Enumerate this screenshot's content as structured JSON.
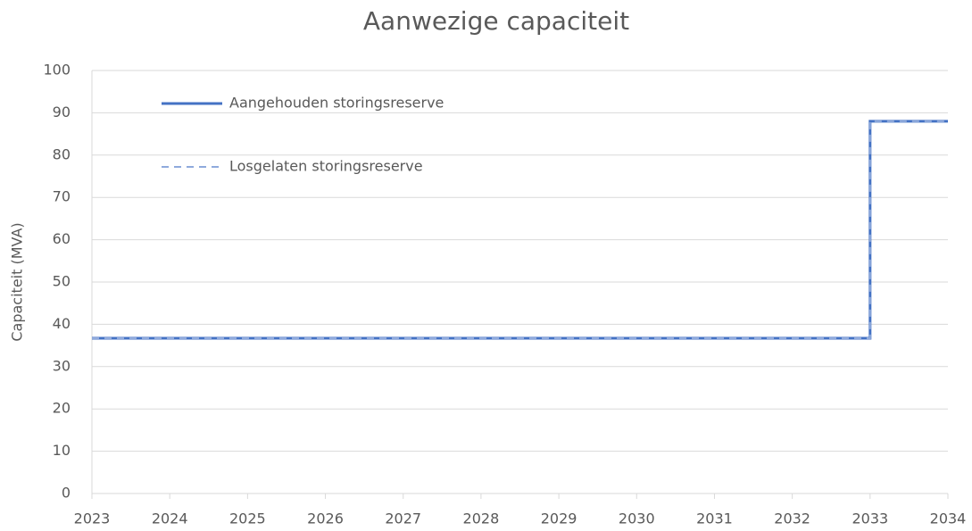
{
  "chart_data": {
    "type": "line",
    "title": "Aanwezige capaciteit",
    "ylabel": "Capaciteit (MVA)",
    "x": [
      2023,
      2033,
      2033,
      2034
    ],
    "series": [
      {
        "name": "Aangehouden storingsreserve",
        "color": "#4472c4",
        "dash": false,
        "values": [
          36.7,
          36.7,
          88,
          88
        ]
      },
      {
        "name": "Losgelaten storingsreserve",
        "color": "#8faadc",
        "dash": true,
        "values": [
          36.7,
          36.7,
          88,
          88
        ]
      }
    ],
    "xlim": [
      2023,
      2034
    ],
    "xticks": [
      2023,
      2024,
      2025,
      2026,
      2027,
      2028,
      2029,
      2030,
      2031,
      2032,
      2033,
      2034
    ],
    "ylim": [
      0,
      100
    ],
    "yticks": [
      0,
      10,
      20,
      30,
      40,
      50,
      60,
      70,
      80,
      90,
      100
    ],
    "grid": true,
    "legend": "upper left"
  }
}
